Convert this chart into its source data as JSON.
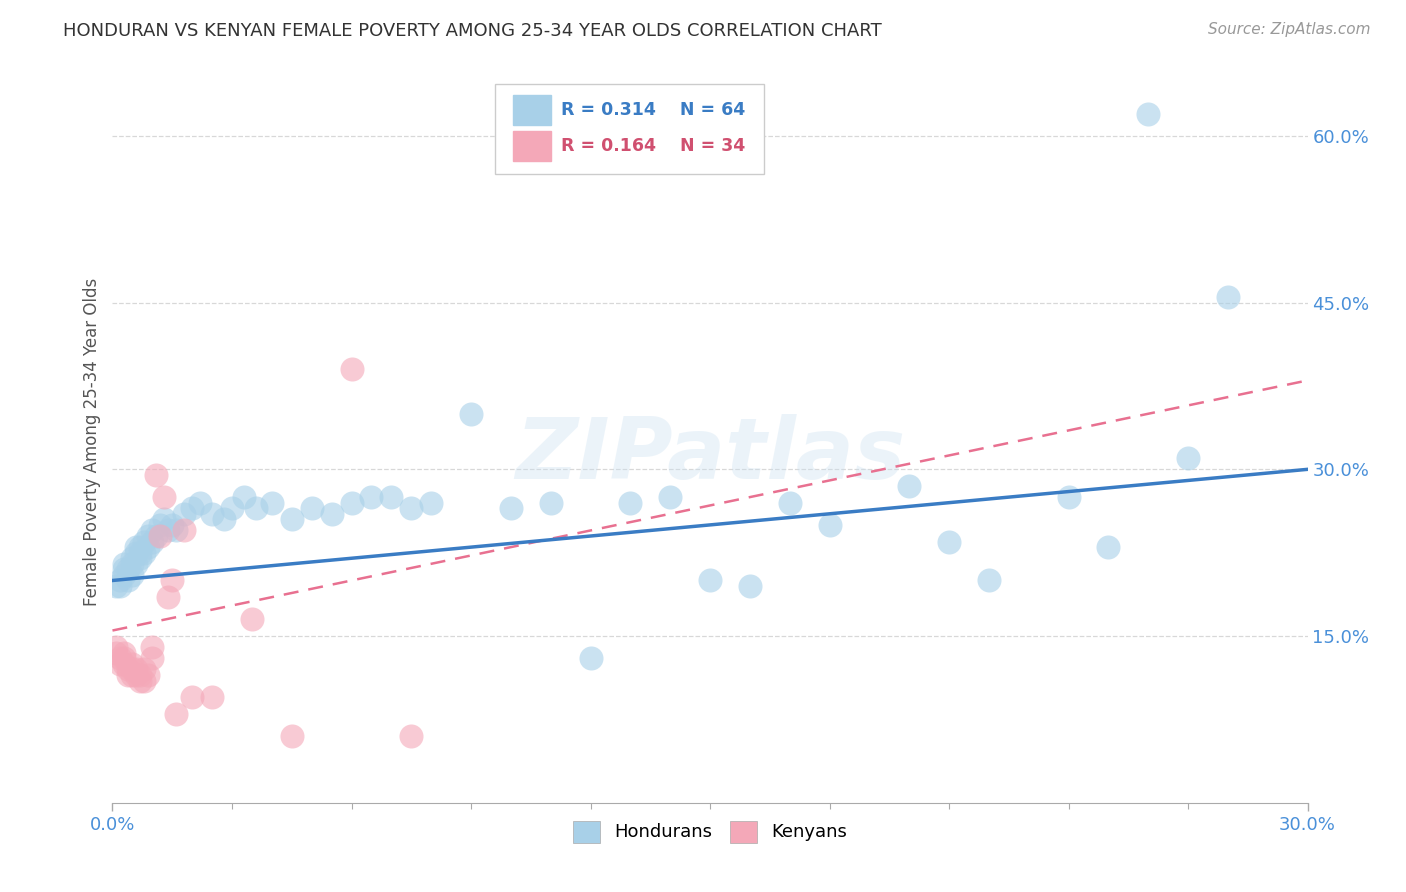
{
  "title": "HONDURAN VS KENYAN FEMALE POVERTY AMONG 25-34 YEAR OLDS CORRELATION CHART",
  "source": "Source: ZipAtlas.com",
  "ylabel": "Female Poverty Among 25-34 Year Olds",
  "xlim": [
    0.0,
    0.3
  ],
  "ylim": [
    0.0,
    0.65
  ],
  "y_ticks": [
    0.15,
    0.3,
    0.45,
    0.6
  ],
  "y_tick_labels": [
    "15.0%",
    "30.0%",
    "45.0%",
    "60.0%"
  ],
  "honduran_color": "#a8d0e8",
  "kenyan_color": "#f4a8b8",
  "honduran_line_color": "#3a7cc4",
  "kenyan_line_color": "#e87090",
  "legend_r1": "R = 0.314",
  "legend_n1": "N = 64",
  "legend_r2": "R = 0.164",
  "legend_n2": "N = 34",
  "honduran_x": [
    0.001,
    0.002,
    0.002,
    0.003,
    0.003,
    0.003,
    0.004,
    0.004,
    0.005,
    0.005,
    0.005,
    0.006,
    0.006,
    0.006,
    0.007,
    0.007,
    0.007,
    0.008,
    0.008,
    0.009,
    0.009,
    0.01,
    0.01,
    0.011,
    0.012,
    0.013,
    0.014,
    0.015,
    0.016,
    0.018,
    0.02,
    0.022,
    0.025,
    0.028,
    0.03,
    0.033,
    0.036,
    0.04,
    0.045,
    0.05,
    0.055,
    0.06,
    0.065,
    0.07,
    0.075,
    0.08,
    0.09,
    0.1,
    0.11,
    0.12,
    0.13,
    0.14,
    0.15,
    0.16,
    0.17,
    0.18,
    0.2,
    0.21,
    0.22,
    0.24,
    0.25,
    0.26,
    0.27,
    0.28
  ],
  "honduran_y": [
    0.195,
    0.2,
    0.195,
    0.205,
    0.21,
    0.215,
    0.2,
    0.21,
    0.205,
    0.215,
    0.22,
    0.215,
    0.225,
    0.23,
    0.22,
    0.225,
    0.23,
    0.225,
    0.235,
    0.23,
    0.24,
    0.235,
    0.245,
    0.24,
    0.25,
    0.255,
    0.245,
    0.25,
    0.245,
    0.26,
    0.265,
    0.27,
    0.26,
    0.255,
    0.265,
    0.275,
    0.265,
    0.27,
    0.255,
    0.265,
    0.26,
    0.27,
    0.275,
    0.275,
    0.265,
    0.27,
    0.35,
    0.265,
    0.27,
    0.13,
    0.27,
    0.275,
    0.2,
    0.195,
    0.27,
    0.25,
    0.285,
    0.235,
    0.2,
    0.275,
    0.23,
    0.62,
    0.31,
    0.455
  ],
  "kenyan_x": [
    0.001,
    0.001,
    0.002,
    0.002,
    0.003,
    0.003,
    0.003,
    0.004,
    0.004,
    0.005,
    0.005,
    0.005,
    0.006,
    0.006,
    0.007,
    0.007,
    0.008,
    0.008,
    0.009,
    0.01,
    0.01,
    0.011,
    0.012,
    0.013,
    0.014,
    0.015,
    0.016,
    0.018,
    0.02,
    0.025,
    0.035,
    0.045,
    0.06,
    0.075
  ],
  "kenyan_y": [
    0.135,
    0.14,
    0.125,
    0.13,
    0.125,
    0.13,
    0.135,
    0.115,
    0.12,
    0.115,
    0.12,
    0.125,
    0.115,
    0.12,
    0.11,
    0.115,
    0.11,
    0.12,
    0.115,
    0.13,
    0.14,
    0.295,
    0.24,
    0.275,
    0.185,
    0.2,
    0.08,
    0.245,
    0.095,
    0.095,
    0.165,
    0.06,
    0.39,
    0.06
  ],
  "watermark": "ZIPatlas",
  "background_color": "#ffffff",
  "grid_color": "#d8d8d8"
}
